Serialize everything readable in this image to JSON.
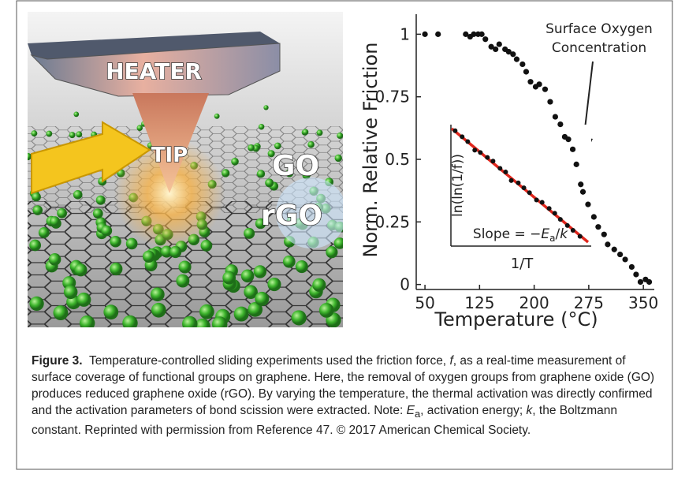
{
  "illustration": {
    "labels": [
      "HEATER",
      "TIP",
      "GO",
      "rGO"
    ]
  },
  "chart_data": [
    {
      "type": "scatter",
      "x_label": "Temperature (°C)",
      "y_label": "Norm. Relative Friction",
      "annotation": [
        "Surface Oxygen",
        "Concentration"
      ],
      "color": "#111111",
      "xlim": [
        38,
        365
      ],
      "ylim": [
        -0.02,
        1.08
      ],
      "xticks": [
        50,
        125,
        200,
        275,
        350
      ],
      "yticks": [
        0,
        0.25,
        0.5,
        0.75,
        1
      ],
      "x": [
        50,
        68,
        106,
        112,
        117,
        123,
        128,
        133,
        141,
        147,
        152,
        160,
        165,
        171,
        176,
        184,
        189,
        195,
        202,
        207,
        215,
        222,
        229,
        236,
        242,
        247,
        253,
        258,
        264,
        267,
        274,
        282,
        288,
        296,
        301,
        310,
        318,
        325,
        334,
        340,
        346,
        353,
        358
      ],
      "values": [
        1,
        1,
        1,
        0.99,
        1,
        1,
        1,
        0.98,
        0.95,
        0.94,
        0.96,
        0.94,
        0.93,
        0.92,
        0.9,
        0.88,
        0.85,
        0.81,
        0.79,
        0.8,
        0.78,
        0.73,
        0.67,
        0.64,
        0.59,
        0.58,
        0.54,
        0.48,
        0.4,
        0.37,
        0.32,
        0.27,
        0.23,
        0.2,
        0.16,
        0.14,
        0.12,
        0.1,
        0.07,
        0.04,
        0.01,
        0.02,
        0.01
      ]
    },
    {
      "type": "scatter",
      "x_label": "1/T",
      "y_label": "ln(ln(1/f))",
      "annotation": [
        "Slope = −",
        "E",
        "a",
        "/",
        "k"
      ],
      "color": "#111111",
      "xlim": [
        0,
        1
      ],
      "ylim": [
        0,
        1
      ],
      "x": [
        0.03,
        0.08,
        0.12,
        0.17,
        0.21,
        0.26,
        0.3,
        0.35,
        0.39,
        0.43,
        0.48,
        0.52,
        0.56,
        0.61,
        0.65,
        0.7,
        0.74,
        0.78,
        0.83,
        0.87,
        0.92
      ],
      "values": [
        0.95,
        0.9,
        0.86,
        0.79,
        0.77,
        0.73,
        0.7,
        0.64,
        0.61,
        0.54,
        0.52,
        0.48,
        0.44,
        0.38,
        0.36,
        0.31,
        0.27,
        0.22,
        0.17,
        0.13,
        0.08
      ]
    }
  ],
  "caption": {
    "label": "Figure 3.",
    "parts": [
      "Temperature-controlled sliding experiments used the friction force, ",
      "f",
      ", as a real-time measurement of surface coverage of functional groups on graphene. Here, the removal of oxygen groups from graphene oxide (GO) produces reduced graphene oxide (rGO). By varying the temperature, the thermal activation was directly confirmed and the activation parameters of bond scission were extracted. Note: ",
      "E",
      "a",
      ", activation energy; ",
      "k",
      ", the Boltzmann constant. Reprinted with permission from Reference 47. © 2017 American Chemical Society."
    ]
  }
}
